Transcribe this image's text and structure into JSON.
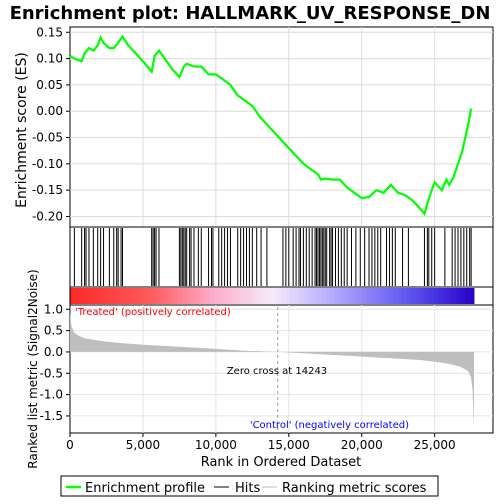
{
  "chart_data": {
    "type": "line",
    "title": "Enrichment plot: HALLMARK_UV_RESPONSE_DN",
    "es_panel": {
      "ylabel": "Enrichment score (ES)",
      "ylim": [
        -0.22,
        0.16
      ],
      "yticks": [
        0.15,
        0.1,
        0.05,
        0.0,
        -0.05,
        -0.1,
        -0.15,
        -0.2
      ],
      "ytick_labels": [
        "0.15",
        "0.10",
        "0.05",
        "0.00",
        "-0.05",
        "-0.10",
        "-0.15",
        "-0.20"
      ],
      "line_color": "#00ff00",
      "curve": {
        "x": [
          0,
          300,
          800,
          1000,
          1300,
          1600,
          1900,
          2100,
          2300,
          2700,
          3000,
          3300,
          3600,
          4000,
          4500,
          5000,
          5600,
          5800,
          6100,
          6500,
          7000,
          7500,
          7800,
          8000,
          8500,
          9000,
          9500,
          10000,
          10500,
          11000,
          11500,
          12000,
          12500,
          13000,
          13500,
          14000,
          14500,
          15000,
          15500,
          16000,
          16500,
          17000,
          17200,
          17500,
          18000,
          18500,
          19000,
          19500,
          20000,
          20500,
          21000,
          21500,
          22000,
          22500,
          23000,
          23500,
          24000,
          24300,
          24500,
          24800,
          25000,
          25500,
          25800,
          26000,
          26300,
          26600,
          26900,
          27100,
          27300,
          27500
        ],
        "y": [
          0.105,
          0.1,
          0.095,
          0.11,
          0.12,
          0.115,
          0.125,
          0.14,
          0.13,
          0.12,
          0.12,
          0.13,
          0.142,
          0.125,
          0.11,
          0.095,
          0.075,
          0.105,
          0.115,
          0.1,
          0.08,
          0.065,
          0.085,
          0.09,
          0.085,
          0.085,
          0.07,
          0.07,
          0.06,
          0.05,
          0.03,
          0.02,
          0.01,
          -0.01,
          -0.025,
          -0.04,
          -0.055,
          -0.07,
          -0.085,
          -0.1,
          -0.11,
          -0.12,
          -0.13,
          -0.128,
          -0.13,
          -0.13,
          -0.145,
          -0.155,
          -0.165,
          -0.163,
          -0.15,
          -0.155,
          -0.14,
          -0.155,
          -0.16,
          -0.17,
          -0.185,
          -0.195,
          -0.175,
          -0.15,
          -0.135,
          -0.15,
          -0.13,
          -0.14,
          -0.125,
          -0.1,
          -0.075,
          -0.05,
          -0.025,
          0.005
        ]
      }
    },
    "hits": [
      300,
      800,
      1000,
      1100,
      1300,
      1600,
      1900,
      2100,
      2300,
      2700,
      3000,
      3200,
      3300,
      3500,
      3600,
      5600,
      5700,
      5800,
      5900,
      6100,
      7500,
      7600,
      7700,
      7800,
      7900,
      8000,
      8200,
      8300,
      8500,
      8800,
      9000,
      9500,
      9700,
      9800,
      10200,
      10400,
      10600,
      10800,
      11000,
      11500,
      11700,
      11900,
      12100,
      12300,
      12500,
      12800,
      13100,
      13500,
      14600,
      14800,
      15000,
      15300,
      15500,
      15700,
      15800,
      16000,
      16200,
      16400,
      16600,
      16800,
      16900,
      17000,
      17100,
      17200,
      17300,
      17400,
      17500,
      17600,
      17800,
      17900,
      18000,
      18200,
      18400,
      18600,
      18800,
      19000,
      19300,
      19600,
      19900,
      20200,
      20500,
      20700,
      20900,
      21100,
      21300,
      21700,
      21900,
      22100,
      22300,
      22800,
      23200,
      24300,
      24500,
      24600,
      24800,
      25000,
      25700,
      26200,
      26400,
      26600,
      26800,
      27000,
      27200,
      27400,
      27500
    ],
    "rank_panel": {
      "ylabel": "Ranked list metric (Signal2Noise)",
      "ylim": [
        -1.9,
        1.1
      ],
      "yticks": [
        1.0,
        0.5,
        0.0,
        -0.5,
        -1.0,
        -1.5
      ],
      "ytick_labels": [
        "1.0",
        "0.5",
        "0.0",
        "-0.5",
        "-1.0",
        "-1.5"
      ],
      "fill_color": "#bebebe",
      "metric": {
        "x": [
          0,
          100,
          300,
          600,
          1000,
          2000,
          3000,
          5000,
          7500,
          10000,
          12000,
          14243,
          16000,
          18000,
          20000,
          22000,
          24000,
          25000,
          26000,
          26800,
          27300,
          27500,
          27600,
          27700
        ],
        "y": [
          0.95,
          0.6,
          0.45,
          0.38,
          0.32,
          0.26,
          0.22,
          0.17,
          0.12,
          0.07,
          0.03,
          0.0,
          -0.03,
          -0.07,
          -0.11,
          -0.15,
          -0.19,
          -0.23,
          -0.28,
          -0.35,
          -0.45,
          -0.6,
          -0.9,
          -1.8
        ]
      },
      "zero_cross_text": "Zero cross at 14243",
      "zero_cross": 14243,
      "treated_text": "'Treated' (positively correlated)",
      "treated_color": "#ff0000",
      "control_text": "'Control' (negatively correlated)",
      "control_color": "#0000ff"
    },
    "xaxis": {
      "xlabel": "Rank in Ordered Dataset",
      "xlim": [
        0,
        29000
      ],
      "xticks": [
        0,
        5000,
        10000,
        15000,
        20000,
        25000
      ],
      "xtick_labels": [
        "0",
        "5,000",
        "10,000",
        "15,000",
        "20,000",
        "25,000"
      ],
      "list_size": 27700
    },
    "legend": {
      "placement": "bottom",
      "entries": [
        {
          "label": "Enrichment profile",
          "color": "#00ff00"
        },
        {
          "label": "Hits",
          "color": "#000000"
        },
        {
          "label": "Ranking metric scores",
          "color": "#bebebe"
        }
      ]
    }
  }
}
